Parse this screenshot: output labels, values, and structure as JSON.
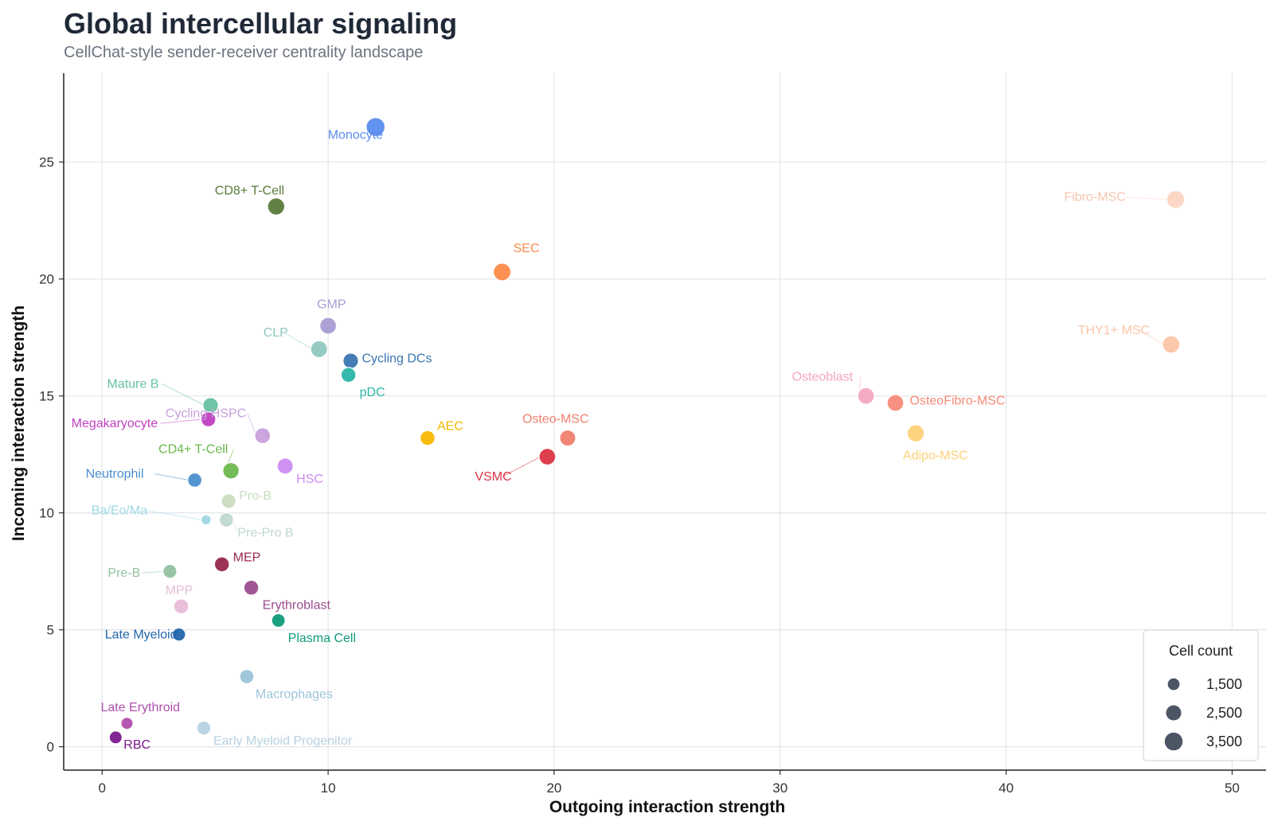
{
  "chart_data": {
    "type": "scatter",
    "title": "Global intercellular signaling",
    "subtitle": "CellChat-style sender-receiver centrality landscape",
    "xlabel": "Outgoing interaction strength",
    "ylabel": "Incoming interaction strength",
    "xlim": [
      -1.7,
      51.5
    ],
    "ylim": [
      -1.0,
      28.8
    ],
    "xticks": [
      0,
      10,
      20,
      30,
      40,
      50
    ],
    "yticks": [
      0,
      5,
      10,
      15,
      20,
      25
    ],
    "grid": true,
    "legend": {
      "title": "Cell count",
      "position": "bottom-right",
      "entries": [
        {
          "label": "1,500",
          "value": 1500
        },
        {
          "label": "2,500",
          "value": 2500
        },
        {
          "label": "3,500",
          "value": 3500
        }
      ]
    },
    "points": [
      {
        "label": "Monocyte",
        "x": 12.1,
        "y": 26.5,
        "size": 3900,
        "color": "#5b8def"
      },
      {
        "label": "CD8+ T-Cell",
        "x": 7.7,
        "y": 23.1,
        "size": 3200,
        "color": "#5a7a3a"
      },
      {
        "label": "Fibro-MSC",
        "x": 47.5,
        "y": 23.4,
        "size": 3500,
        "color": "#fdd5c2"
      },
      {
        "label": "SEC",
        "x": 17.7,
        "y": 20.3,
        "size": 3400,
        "color": "#fb8c4a"
      },
      {
        "label": "GMP",
        "x": 10.0,
        "y": 18.0,
        "size": 3000,
        "color": "#a99bd3"
      },
      {
        "label": "THY1+ MSC",
        "x": 47.3,
        "y": 17.2,
        "size": 3300,
        "color": "#fcc5a5"
      },
      {
        "label": "CLP",
        "x": 9.6,
        "y": 17.0,
        "size": 3100,
        "color": "#8fc8bf"
      },
      {
        "label": "Cycling DCs",
        "x": 11.0,
        "y": 16.5,
        "size": 2600,
        "color": "#3a75b0"
      },
      {
        "label": "pDC",
        "x": 10.9,
        "y": 15.9,
        "size": 2400,
        "color": "#2ab5a5"
      },
      {
        "label": "Osteoblast",
        "x": 33.8,
        "y": 15.0,
        "size": 3000,
        "color": "#f4a6be"
      },
      {
        "label": "OsteoFibro-MSC",
        "x": 35.1,
        "y": 14.7,
        "size": 3000,
        "color": "#f88a78"
      },
      {
        "label": "Mature B",
        "x": 4.8,
        "y": 14.6,
        "size": 2600,
        "color": "#66c2a0"
      },
      {
        "label": "Megakaryocyte",
        "x": 4.7,
        "y": 14.0,
        "size": 2400,
        "color": "#c03fbf"
      },
      {
        "label": "Adipo-MSC",
        "x": 36.0,
        "y": 13.4,
        "size": 3200,
        "color": "#fed27a"
      },
      {
        "label": "Cycling HSPC",
        "x": 7.1,
        "y": 13.3,
        "size": 2700,
        "color": "#c9a0dc"
      },
      {
        "label": "AEC",
        "x": 14.4,
        "y": 13.2,
        "size": 2400,
        "color": "#f5b700"
      },
      {
        "label": "Osteo-MSC",
        "x": 20.6,
        "y": 13.2,
        "size": 2800,
        "color": "#f07f6e"
      },
      {
        "label": "VSMC",
        "x": 19.7,
        "y": 12.4,
        "size": 3000,
        "color": "#dc3545"
      },
      {
        "label": "HSC",
        "x": 8.1,
        "y": 12.0,
        "size": 2800,
        "color": "#cc8cf2"
      },
      {
        "label": "CD4+ T-Cell",
        "x": 5.7,
        "y": 11.8,
        "size": 2900,
        "color": "#6bb84e"
      },
      {
        "label": "Neutrophil",
        "x": 4.1,
        "y": 11.4,
        "size": 2200,
        "color": "#4a8fcf"
      },
      {
        "label": "Pro-B",
        "x": 5.6,
        "y": 10.5,
        "size": 2300,
        "color": "#c9ddc0"
      },
      {
        "label": "Ba/Eo/Ma",
        "x": 4.6,
        "y": 9.7,
        "size": 1100,
        "color": "#9ed8e5"
      },
      {
        "label": "Pre-Pro B",
        "x": 5.5,
        "y": 9.7,
        "size": 2200,
        "color": "#bfd8cf"
      },
      {
        "label": "Pre-B",
        "x": 3.0,
        "y": 7.5,
        "size": 2100,
        "color": "#95c2a0"
      },
      {
        "label": "MEP",
        "x": 5.3,
        "y": 7.8,
        "size": 2400,
        "color": "#97284c"
      },
      {
        "label": "Erythroblast",
        "x": 6.6,
        "y": 6.8,
        "size": 2400,
        "color": "#9b4d8f"
      },
      {
        "label": "MPP",
        "x": 3.5,
        "y": 6.0,
        "size": 2400,
        "color": "#e8bcd8"
      },
      {
        "label": "Plasma Cell",
        "x": 7.8,
        "y": 5.4,
        "size": 2000,
        "color": "#0e9a7a"
      },
      {
        "label": "Late Myeloid",
        "x": 3.4,
        "y": 4.8,
        "size": 1900,
        "color": "#2166ac"
      },
      {
        "label": "Macrophages",
        "x": 6.4,
        "y": 3.0,
        "size": 2200,
        "color": "#9cc4d8"
      },
      {
        "label": "Late Erythroid",
        "x": 1.1,
        "y": 1.0,
        "size": 1600,
        "color": "#b04fae"
      },
      {
        "label": "Early Myeloid Progenitor",
        "x": 4.5,
        "y": 0.8,
        "size": 2100,
        "color": "#b8d2e2"
      },
      {
        "label": "RBC",
        "x": 0.6,
        "y": 0.4,
        "size": 1800,
        "color": "#7a1a8c"
      }
    ]
  }
}
